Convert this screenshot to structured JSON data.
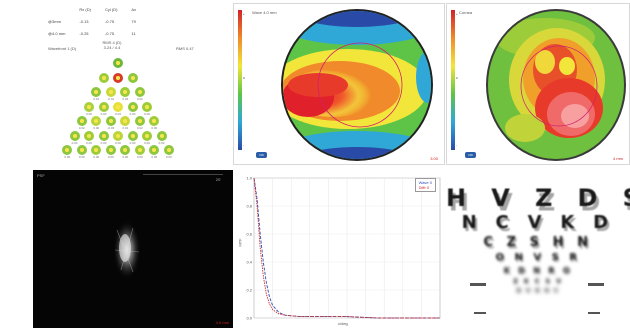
{
  "zernike_panel": {
    "table_headers": [
      "Rx (D)",
      "Cyl (D)",
      "Ax"
    ],
    "table_rows": [
      {
        "label": "@3mm",
        "sph": "-0.13",
        "cyl": "-0.75",
        "ax": "79"
      },
      {
        "label": "@4.0 mm",
        "sph": "-0.25",
        "cyl": "-0.75",
        "ax": "11"
      }
    ],
    "center_lines": [
      "RMS 4 (D)",
      "3.24 / 4.4"
    ],
    "left_label": "Wavefront 1 (D)",
    "right_label": "RMS 0.47",
    "pyramid": [
      [
        {
          "c": "#6bb83a",
          "t": ""
        }
      ],
      [
        {
          "c": "#9ccc3a",
          "t": ""
        },
        {
          "c": "#d93b2a",
          "t": ""
        },
        {
          "c": "#8dc63f",
          "t": ""
        }
      ],
      [
        {
          "c": "#8dc63f",
          "t": "0.01"
        },
        {
          "c": "#c8d83a",
          "t": "-0.01"
        },
        {
          "c": "#9ccc3a",
          "t": "0.04"
        },
        {
          "c": "#8dc63f",
          "t": "0.02"
        }
      ],
      [
        {
          "c": "#a8d040",
          "t": "0.00"
        },
        {
          "c": "#9ccc3a",
          "t": "0.00"
        },
        {
          "c": "#e6e13a",
          "t": "0.03"
        },
        {
          "c": "#8dc63f",
          "t": "0.00"
        },
        {
          "c": "#9ccc3a",
          "t": "0.00"
        }
      ],
      [
        {
          "c": "#8dc63f",
          "t": "0.02"
        },
        {
          "c": "#b7d53c",
          "t": "0.00"
        },
        {
          "c": "#8dc63f",
          "t": "-0.03"
        },
        {
          "c": "#c8d83a",
          "t": "0.01"
        },
        {
          "c": "#8dc63f",
          "t": "0.02"
        },
        {
          "c": "#9ccc3a",
          "t": "0.00"
        }
      ],
      [
        {
          "c": "#8dc63f",
          "t": "0.00"
        },
        {
          "c": "#9ccc3a",
          "t": "0.00"
        },
        {
          "c": "#8dc63f",
          "t": "0.00"
        },
        {
          "c": "#b7d53c",
          "t": "0.00"
        },
        {
          "c": "#8dc63f",
          "t": "0.00"
        },
        {
          "c": "#9ccc3a",
          "t": "0.00"
        },
        {
          "c": "#8dc63f",
          "t": "0.00"
        }
      ],
      [
        {
          "c": "#8dc63f",
          "t": "0.00"
        },
        {
          "c": "#8dc63f",
          "t": "0.00"
        },
        {
          "c": "#9ccc3a",
          "t": "0.00"
        },
        {
          "c": "#8dc63f",
          "t": "0.00"
        },
        {
          "c": "#8dc63f",
          "t": "0.00"
        },
        {
          "c": "#9ccc3a",
          "t": "0.00"
        },
        {
          "c": "#8dc63f",
          "t": "0.00"
        },
        {
          "c": "#8dc63f",
          "t": "0.00"
        }
      ]
    ]
  },
  "map1": {
    "title": "Wave 4.0 mm",
    "footer_right": "3.00",
    "badge": "OD",
    "colorbar_ticks": [
      "+",
      "0",
      "-"
    ],
    "colors": {
      "top": "#d1232a",
      "bottom": "#2a4aa8"
    }
  },
  "map2": {
    "title": "Cornea",
    "footer_right": "4 mm",
    "badge": "OD",
    "colorbar_ticks": [
      "+",
      "0",
      "-"
    ]
  },
  "psf": {
    "title": "PSF",
    "top_right": "20'",
    "footer_right": "4.0 mm"
  },
  "mtf": {
    "legend": [
      {
        "label": "Wave",
        "value": "0",
        "color": "#2b4db8"
      },
      {
        "label": "Diffr",
        "value": "0",
        "color": "#d02a2a"
      }
    ],
    "y_ticks": [
      "1.0",
      "0.8",
      "0.6",
      "0.4",
      "0.2",
      "0.0"
    ],
    "y_axis_label": "MTF",
    "x_axis_label": "c/deg",
    "chart_data": {
      "type": "line",
      "series": [
        {
          "name": "Wave",
          "x": [
            0,
            1,
            2,
            3,
            4,
            5,
            6,
            8,
            10,
            15,
            20,
            30,
            40,
            60
          ],
          "y": [
            1.0,
            0.85,
            0.6,
            0.4,
            0.25,
            0.15,
            0.09,
            0.04,
            0.02,
            0.01,
            0.01,
            0.01,
            0.0,
            0.0
          ]
        },
        {
          "name": "Diffr",
          "x": [
            0,
            1,
            2,
            3,
            4,
            5,
            6,
            8,
            10,
            15,
            20,
            30,
            40,
            60
          ],
          "y": [
            1.0,
            0.8,
            0.5,
            0.3,
            0.17,
            0.1,
            0.06,
            0.03,
            0.02,
            0.01,
            0.01,
            0.01,
            0.0,
            0.0
          ]
        }
      ],
      "xlim": [
        0,
        60
      ],
      "ylim": [
        0,
        1
      ]
    }
  },
  "chart": {
    "rows": [
      "H V Z D S",
      "N C V K D",
      "C Z S H N",
      "O N V S R",
      "K D N R O",
      "Z K C S V",
      "D V O H C"
    ],
    "row_sizes": [
      24,
      18,
      13,
      10,
      8,
      6,
      5
    ]
  }
}
